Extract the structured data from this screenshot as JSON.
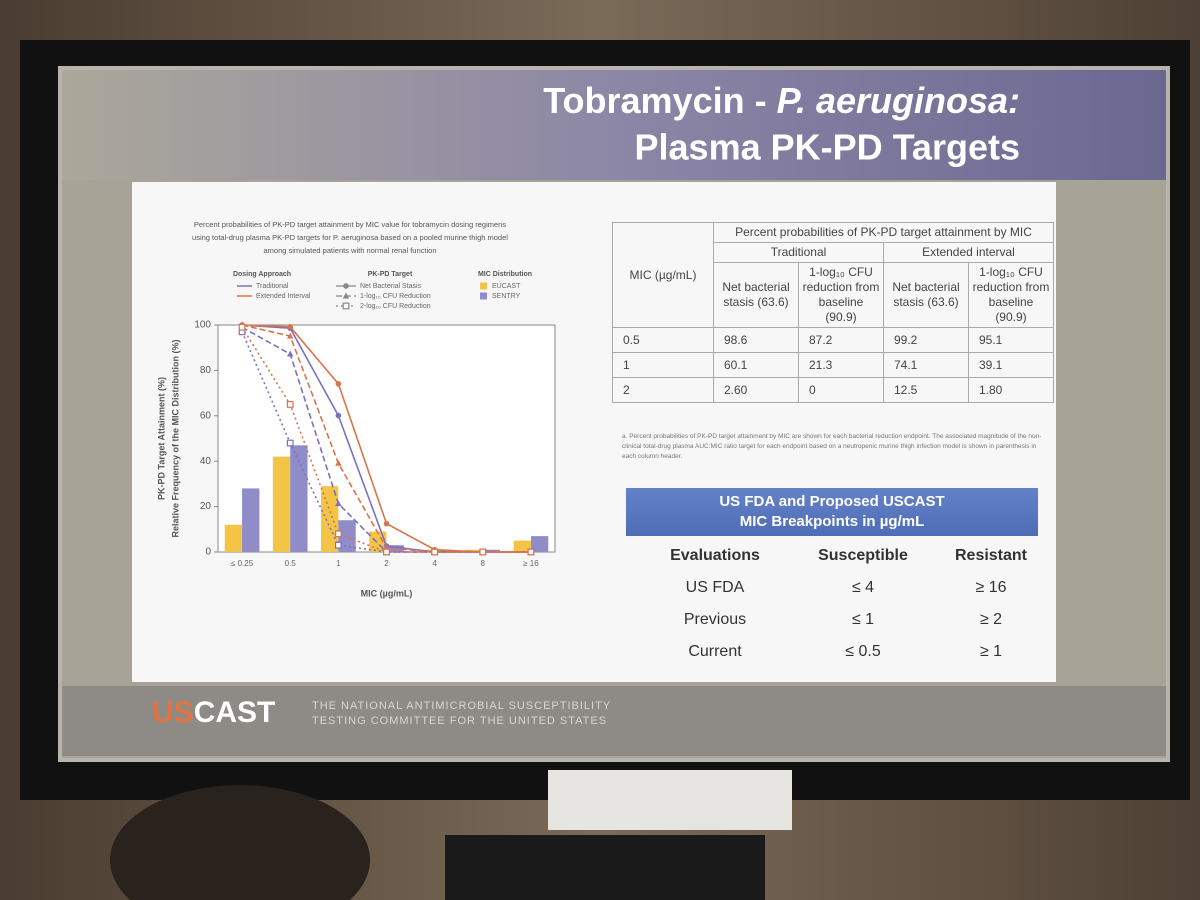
{
  "slide": {
    "title_start": "Tobramycin - ",
    "title_italic": "P. aeruginosa:",
    "title_second": "Plasma PK-PD Targets"
  },
  "chart_data": {
    "type": "bar-line",
    "title": "Percent probabilities of PK-PD target attainment by MIC value for tobramycin dosing regimens using total-drug plasma PK-PD targets for P. aeruginosa based on a pooled murine thigh model among simulated patients with normal renal function",
    "y_label": "PK-PD Target Attainment (%)",
    "y2_label": "Relative Frequency of the MIC Distribution (%)",
    "x_label": "MIC (µg/mL)",
    "categories": [
      "≤ 0.25",
      "0.5",
      "1",
      "2",
      "4",
      "8",
      "≥ 16"
    ],
    "ylim": [
      0,
      100
    ],
    "yticks": [
      0,
      20,
      40,
      60,
      80,
      100
    ],
    "dosing": {
      "title": "Dosing Approach",
      "series": [
        {
          "name": "Traditional",
          "color": "#7c70c2",
          "targets": [
            {
              "values": [
                100,
                98.6,
                60.1,
                2.6,
                0,
                0,
                0
              ]
            },
            {
              "values": [
                99,
                87.2,
                21.3,
                0,
                0,
                0,
                0
              ]
            },
            {
              "values": [
                97,
                48,
                3,
                0,
                0,
                0,
                0
              ]
            }
          ]
        },
        {
          "name": "Extended Interval",
          "color": "#d8744c",
          "targets": [
            {
              "values": [
                100,
                99.2,
                74.1,
                12.5,
                1,
                0,
                0
              ]
            },
            {
              "values": [
                100,
                95.1,
                39.1,
                1.8,
                0,
                0,
                0
              ]
            },
            {
              "values": [
                99,
                65,
                8,
                0,
                0,
                0,
                0
              ]
            }
          ]
        }
      ]
    },
    "pk_pd_target": {
      "title": "PK-PD Target",
      "names": [
        "Net Bacterial Stasis",
        "1-log₁₀ CFU Reduction",
        "2-log₁₀ CFU Reduction"
      ],
      "dash": [
        "none",
        "6 3",
        "2 3"
      ],
      "marker": [
        "circle",
        "triangle",
        "square"
      ]
    },
    "mic_distribution": {
      "title": "MIC Distribution",
      "series": [
        {
          "name": "EUCAST",
          "color": "#f3c445",
          "values": [
            12,
            42,
            29,
            9,
            1,
            1,
            5
          ]
        },
        {
          "name": "SENTRY",
          "color": "#8f8cc8",
          "values": [
            28,
            47,
            14,
            3,
            1,
            1,
            7
          ]
        }
      ]
    }
  },
  "table": {
    "mic_header": "MIC (µg/mL)",
    "title": "Percent probabilities of PK-PD target attainment by MIC",
    "groups": [
      "Traditional",
      "Extended interval"
    ],
    "columns": [
      "Net bacterial stasis (63.6)",
      "1-log₁₀ CFU reduction from baseline (90.9)",
      "Net bacterial stasis (63.6)",
      "1-log₁₀ CFU reduction from baseline (90.9)"
    ],
    "rows": [
      [
        "0.5",
        "98.6",
        "87.2",
        "99.2",
        "95.1"
      ],
      [
        "1",
        "60.1",
        "21.3",
        "74.1",
        "39.1"
      ],
      [
        "2",
        "2.60",
        "0",
        "12.5",
        "1.80"
      ]
    ],
    "footnote": "a. Percent probabilities of PK-PD target attainment by MIC are shown for each bacterial reduction endpoint. The associated magnitude of the non-clinical total-drug plasma AUC:MIC ratio target for each endpoint based on a neutropenic murine thigh infection model is shown in parenthesis in each column header."
  },
  "breakpoints": {
    "title": "US FDA and Proposed USCAST MIC Breakpoints in µg/mL",
    "header": [
      "Evaluations",
      "Susceptible",
      "Resistant"
    ],
    "rows": [
      [
        "US FDA",
        "≤ 4",
        "≥ 16"
      ],
      [
        "Previous",
        "≤ 1",
        "≥ 2"
      ],
      [
        "Current",
        "≤ 0.5",
        "≥ 1"
      ]
    ]
  },
  "footer": {
    "logo_us": "US",
    "logo_cast": "CAST",
    "line_1": "THE NATIONAL ANTIMICROBIAL SUSCEPTIBILITY",
    "line_2": "TESTING COMMITTEE FOR THE UNITED STATES"
  }
}
